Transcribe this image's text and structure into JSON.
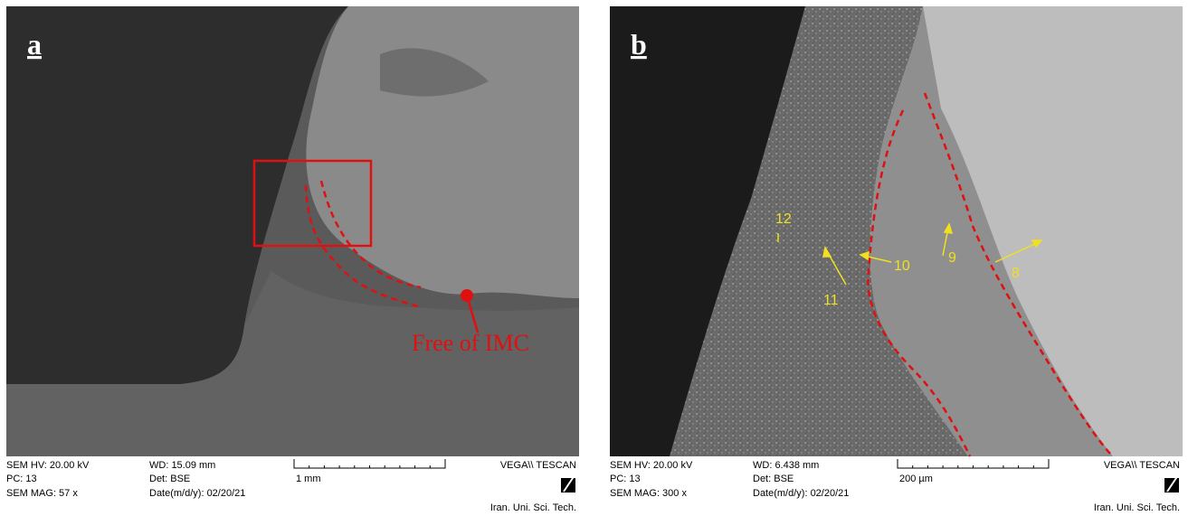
{
  "panels": [
    {
      "label": "a",
      "annotations": [
        "Free of IMC"
      ],
      "info": {
        "hv": "SEM HV: 20.00 kV",
        "pc": "PC:  13",
        "mag": "SEM MAG: 57 x",
        "wd": "WD: 15.09 mm",
        "det": "Det: BSE",
        "date": "Date(m/d/y): 02/20/21",
        "scale": "1 mm",
        "brand": "VEGA\\\\ TESCAN",
        "institution": "Iran. Uni. Sci. Tech."
      }
    },
    {
      "label": "b",
      "annotations": [
        "12",
        "10",
        "9",
        "8",
        "11"
      ],
      "info": {
        "hv": "SEM HV: 20.00 kV",
        "pc": "PC:  13",
        "mag": "SEM MAG: 300 x",
        "wd": "WD: 6.438 mm",
        "det": "Det: BSE",
        "date": "Date(m/d/y): 02/20/21",
        "scale": "200 µm",
        "brand": "VEGA\\\\ TESCAN",
        "institution": "Iran. Uni. Sci. Tech."
      }
    }
  ]
}
